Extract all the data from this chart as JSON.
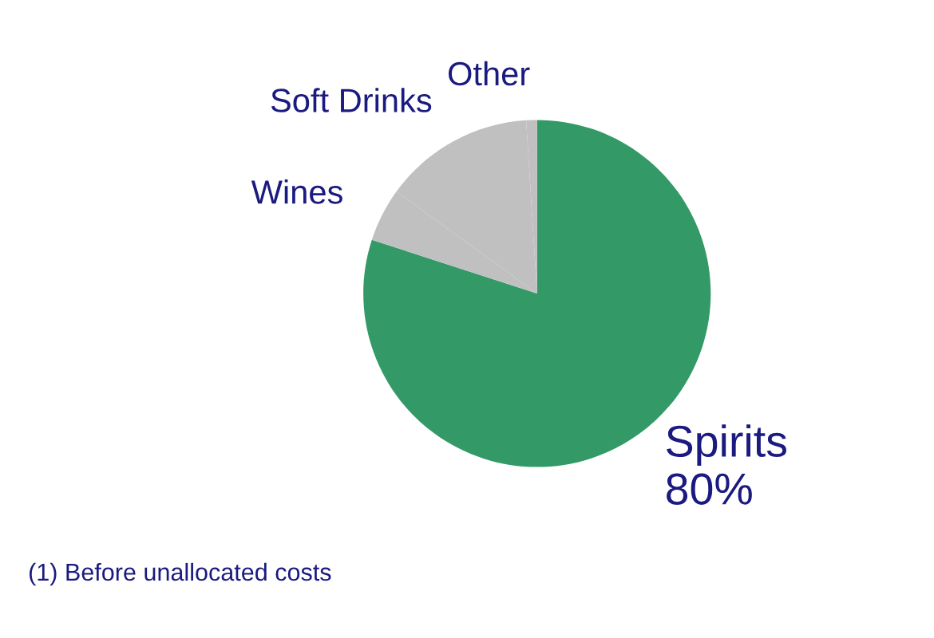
{
  "chart_data": {
    "type": "pie",
    "categories": [
      "Spirits",
      "Wines",
      "Soft Drinks",
      "Other"
    ],
    "values": [
      80,
      5,
      14,
      1
    ],
    "colors": [
      "#339966",
      "#c0c0c0",
      "#c0c0c0",
      "#c0c0c0"
    ],
    "value_labels": [
      "80%",
      null,
      null,
      null
    ],
    "annotations": [
      "(1) Before unallocated costs"
    ],
    "legend": false
  }
}
